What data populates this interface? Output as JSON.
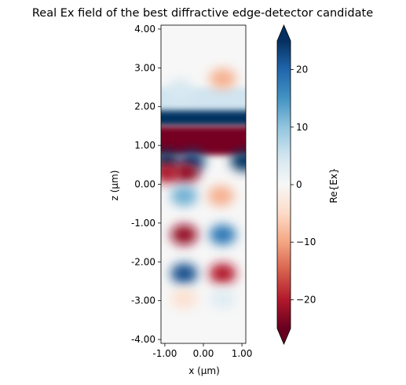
{
  "chart_data": {
    "type": "heatmap",
    "title": "Real Ex field of the best diffractive edge-detector candidate",
    "xlabel": "x (µm)",
    "ylabel": "z (µm)",
    "xlim": [
      -1.1,
      1.1
    ],
    "ylim": [
      -4.1,
      4.1
    ],
    "x_ticks": [
      -1.0,
      0.0,
      1.0
    ],
    "x_tick_labels": [
      "-1.00",
      "0.00",
      "1.00"
    ],
    "y_ticks": [
      4,
      3,
      2,
      1,
      0,
      -1,
      -2,
      -3,
      -4
    ],
    "y_tick_labels": [
      "4.00",
      "3.00",
      "2.00",
      "1.00",
      "0.00",
      "-1.00",
      "-2.00",
      "-3.00",
      "-4.00"
    ],
    "colorbar": {
      "label": "Re{Ex}",
      "range": [
        -25,
        25
      ],
      "ticks": [
        20,
        10,
        0,
        -10,
        -20
      ],
      "tick_labels": [
        "20",
        "10",
        "0",
        "−10",
        "−20"
      ],
      "colormap": "RdBu",
      "extend": "both"
    },
    "features": [
      {
        "shape": "band",
        "x": [
          -1.1,
          1.1
        ],
        "z": [
          1.5,
          2.2
        ],
        "value": 25
      },
      {
        "shape": "band",
        "x": [
          -1.1,
          1.1
        ],
        "z": [
          0.75,
          1.5
        ],
        "value": -24
      },
      {
        "shape": "band",
        "x": [
          -1.1,
          1.1
        ],
        "z": [
          1.9,
          2.5
        ],
        "value": 5
      },
      {
        "shape": "blob",
        "x": 0.5,
        "z": 2.72,
        "value": -9
      },
      {
        "shape": "blob",
        "x": -0.6,
        "z": 2.45,
        "value": 4
      },
      {
        "shape": "blob",
        "x": -0.95,
        "z": 0.6,
        "value": 25
      },
      {
        "shape": "blob",
        "x": -0.3,
        "z": 0.6,
        "value": 23
      },
      {
        "shape": "blob",
        "x": 1.05,
        "z": 0.6,
        "value": 25
      },
      {
        "shape": "blob",
        "x": -0.45,
        "z": 0.3,
        "value": -22
      },
      {
        "shape": "blob",
        "x": -0.95,
        "z": 0.3,
        "value": -20
      },
      {
        "shape": "blob",
        "x": -0.5,
        "z": -0.3,
        "value": 12
      },
      {
        "shape": "blob",
        "x": 0.45,
        "z": -0.3,
        "value": -9
      },
      {
        "shape": "blob",
        "x": -0.5,
        "z": -1.3,
        "value": -22
      },
      {
        "shape": "blob",
        "x": 0.5,
        "z": -1.3,
        "value": 18
      },
      {
        "shape": "blob",
        "x": -0.5,
        "z": -2.3,
        "value": 22
      },
      {
        "shape": "blob",
        "x": 0.5,
        "z": -2.3,
        "value": -20
      },
      {
        "shape": "blob",
        "x": -0.5,
        "z": -2.95,
        "value": -4
      },
      {
        "shape": "blob",
        "x": 0.5,
        "z": -2.95,
        "value": 3
      }
    ]
  }
}
